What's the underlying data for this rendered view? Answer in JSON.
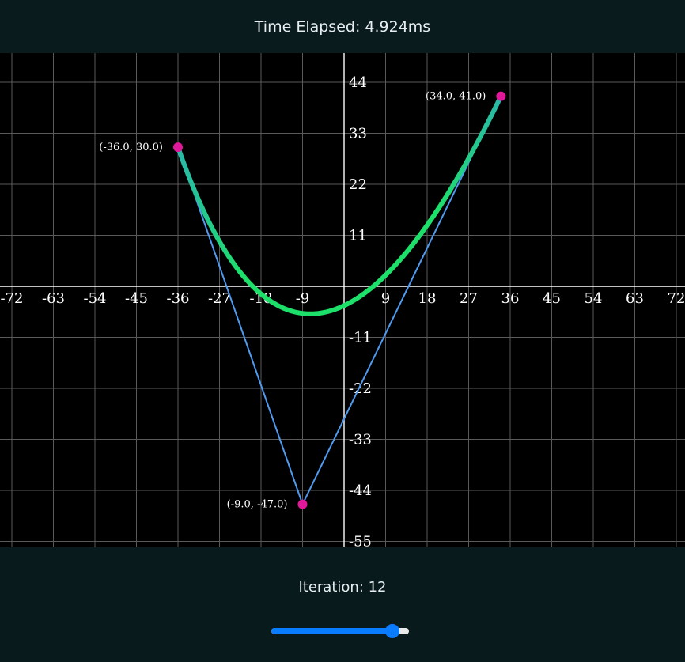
{
  "header": {
    "title": "Time Elapsed: 4.924ms"
  },
  "footer": {
    "iteration_label": "Iteration: 12"
  },
  "slider": {
    "value": 12,
    "min": 0,
    "max": 13,
    "fill_color": "#0a7cff"
  },
  "chart_data": {
    "type": "line",
    "xlim": [
      -74,
      72
    ],
    "ylim": [
      -56,
      50
    ],
    "x_ticks": [
      -72,
      -63,
      -54,
      -45,
      -36,
      -27,
      -18,
      -9,
      9,
      18,
      27,
      36,
      45,
      54,
      63,
      72
    ],
    "x_tick_labels": [
      "-72",
      "-63",
      "-54",
      "-45",
      "-36",
      "-27",
      "-18",
      "-9",
      "9",
      "18",
      "27",
      "36",
      "45",
      "54",
      "63",
      "72"
    ],
    "y_ticks": [
      44,
      33,
      22,
      11,
      -11,
      -22,
      -33,
      -44,
      -55
    ],
    "y_tick_labels": [
      "44",
      "33",
      "22",
      "11",
      "-11",
      "-22",
      "-33",
      "-44",
      "-55"
    ],
    "grid": true,
    "control_points": [
      {
        "x": -36.0,
        "y": 30.0,
        "label": "(-36.0, 30.0)"
      },
      {
        "x": -9.0,
        "y": -47.0,
        "label": "(-9.0, -47.0)"
      },
      {
        "x": 34.0,
        "y": 41.0,
        "label": "(34.0, 41.0)"
      }
    ],
    "colors": {
      "grid": "#5a5a5a",
      "axis": "#ffffff",
      "control_polygon": "#4f9bf0",
      "curve_start": "#2ab8a8",
      "curve": "#1de06a",
      "point": "#e0189a"
    }
  }
}
